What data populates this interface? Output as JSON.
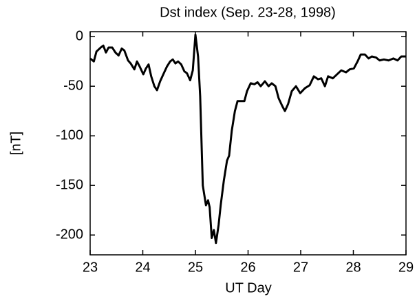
{
  "chart_data": {
    "type": "line",
    "title": "Dst index (Sep. 23-28, 1998)",
    "x_label": "UT Day",
    "y_label": "[nT]",
    "xlim": [
      23,
      29
    ],
    "ylim": [
      -220,
      5
    ],
    "xticks": [
      23,
      24,
      25,
      26,
      27,
      28,
      29
    ],
    "yticks": [
      0,
      -50,
      -100,
      -150,
      -200
    ],
    "series": [
      {
        "name": "Dst",
        "color": "#000000",
        "x": [
          23.0,
          23.07,
          23.12,
          23.2,
          23.25,
          23.3,
          23.35,
          23.42,
          23.48,
          23.54,
          23.6,
          23.65,
          23.72,
          23.77,
          23.84,
          23.89,
          23.94,
          24.01,
          24.06,
          24.11,
          24.16,
          24.22,
          24.27,
          24.33,
          24.39,
          24.46,
          24.52,
          24.57,
          24.62,
          24.67,
          24.73,
          24.79,
          24.84,
          24.9,
          24.95,
          25.0,
          25.05,
          25.09,
          25.14,
          25.2,
          25.24,
          25.27,
          25.31,
          25.35,
          25.39,
          25.44,
          25.48,
          25.54,
          25.6,
          25.64,
          25.69,
          25.75,
          25.8,
          25.93,
          25.98,
          26.05,
          26.12,
          26.18,
          26.24,
          26.32,
          26.39,
          26.45,
          26.52,
          26.58,
          26.65,
          26.7,
          26.76,
          26.83,
          26.91,
          26.99,
          27.08,
          27.17,
          27.25,
          27.33,
          27.39,
          27.46,
          27.52,
          27.61,
          27.69,
          27.77,
          27.86,
          27.93,
          28.01,
          28.08,
          28.14,
          28.22,
          28.29,
          28.35,
          28.43,
          28.5,
          28.58,
          28.67,
          28.76,
          28.84,
          28.91,
          29.0
        ],
        "values": [
          -22,
          -25,
          -15,
          -11,
          -9,
          -16,
          -11,
          -11,
          -16,
          -19,
          -12,
          -14,
          -24,
          -27,
          -33,
          -25,
          -30,
          -38,
          -32,
          -28,
          -40,
          -50,
          -54,
          -45,
          -38,
          -30,
          -25,
          -23,
          -27,
          -25,
          -28,
          -35,
          -37,
          -44,
          -34,
          2,
          -20,
          -60,
          -150,
          -170,
          -165,
          -172,
          -203,
          -195,
          -208,
          -190,
          -170,
          -145,
          -125,
          -120,
          -95,
          -75,
          -65,
          -65,
          -55,
          -47,
          -48,
          -46,
          -50,
          -45,
          -50,
          -47,
          -50,
          -62,
          -70,
          -75,
          -68,
          -55,
          -50,
          -57,
          -52,
          -49,
          -40,
          -43,
          -42,
          -50,
          -40,
          -42,
          -38,
          -34,
          -36,
          -33,
          -32,
          -25,
          -18,
          -18,
          -22,
          -20,
          -21,
          -24,
          -23,
          -24,
          -22,
          -24,
          -20,
          -20
        ]
      }
    ]
  }
}
